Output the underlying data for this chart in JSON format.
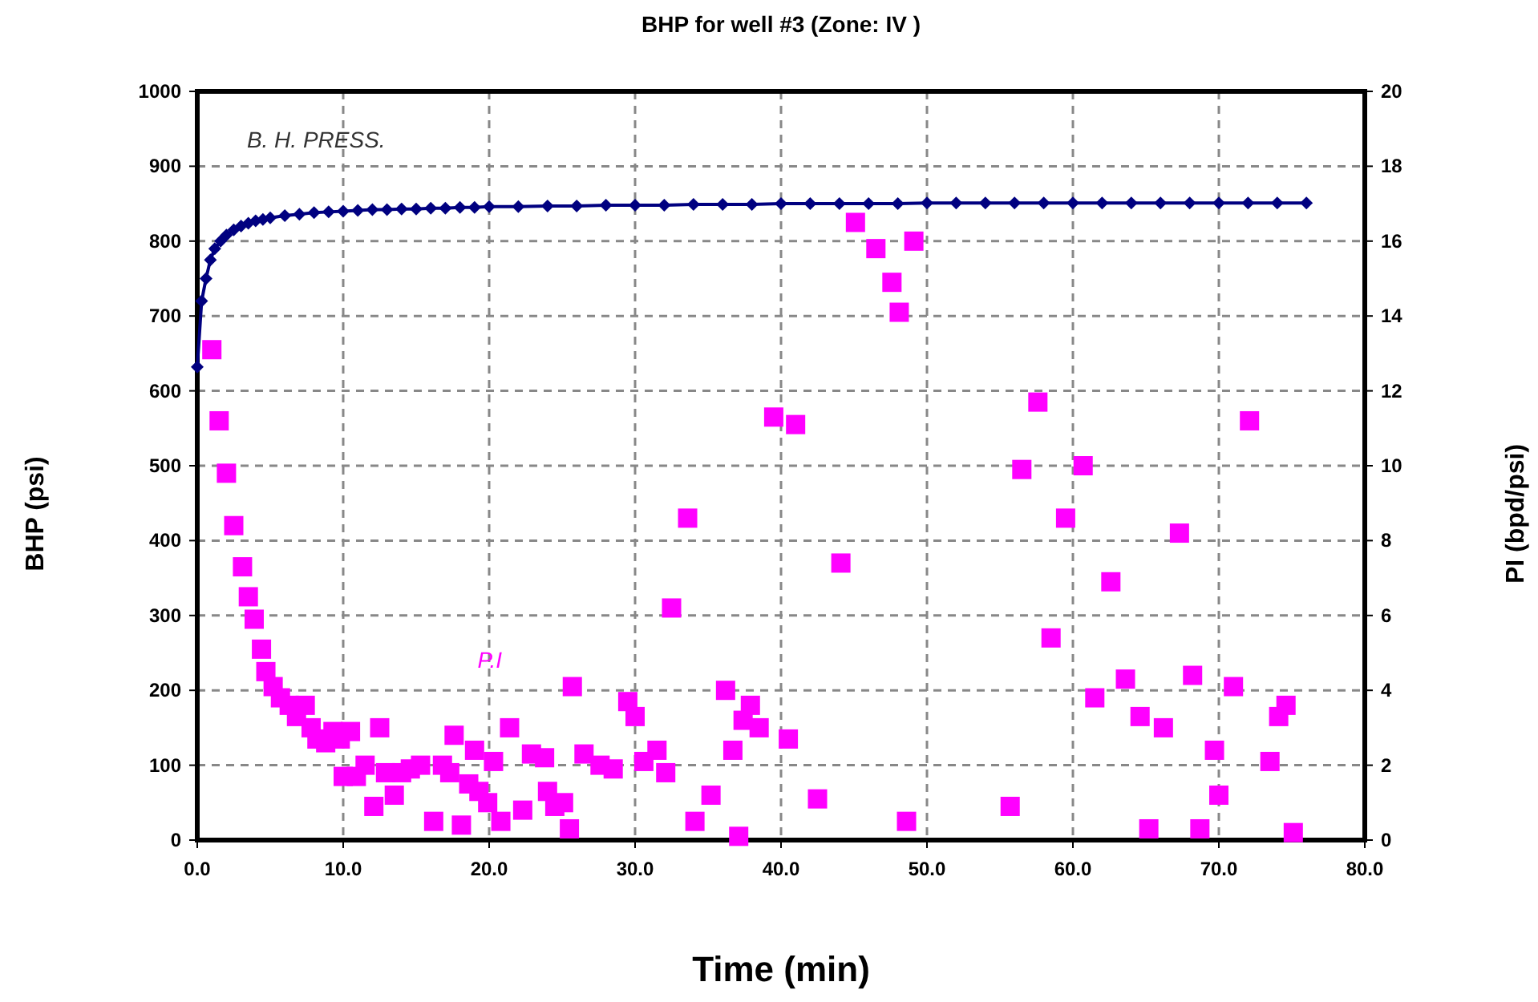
{
  "chart_data": {
    "type": "scatter",
    "title": "BHP for well #3 (Zone: IV )",
    "xlabel": "Time (min)",
    "ylabel": "BHP (psi)",
    "y2label": "PI (bpd/psi)",
    "xlim": [
      0,
      80
    ],
    "xticks": [
      {
        "value": 0,
        "label": "0.0"
      },
      {
        "value": 10,
        "label": "10.0"
      },
      {
        "value": 20,
        "label": "20.0"
      },
      {
        "value": 30,
        "label": "30.0"
      },
      {
        "value": 40,
        "label": "40.0"
      },
      {
        "value": 50,
        "label": "50.0"
      },
      {
        "value": 60,
        "label": "60.0"
      },
      {
        "value": 70,
        "label": "70.0"
      },
      {
        "value": 80,
        "label": "80.0"
      }
    ],
    "ylim": [
      0,
      1000
    ],
    "yticks": [
      0,
      100,
      200,
      300,
      400,
      500,
      600,
      700,
      800,
      900,
      1000
    ],
    "y2lim": [
      0,
      20
    ],
    "y2ticks": [
      0,
      2,
      4,
      6,
      8,
      10,
      12,
      14,
      16,
      18,
      20
    ],
    "grid": true,
    "series": [
      {
        "name": "B. H. PRESS.",
        "type": "line",
        "color": "#000080",
        "marker": "diamond",
        "line_style": "solid",
        "x": [
          0,
          0.3,
          0.6,
          0.9,
          1.2,
          1.6,
          2,
          2.5,
          3,
          3.5,
          4,
          4.5,
          5,
          6,
          7,
          8,
          9,
          10,
          11,
          12,
          13,
          14,
          15,
          16,
          17,
          18,
          19,
          20,
          22,
          24,
          26,
          28,
          30,
          32,
          34,
          36,
          38,
          40,
          42,
          44,
          46,
          48,
          50,
          52,
          54,
          56,
          58,
          60,
          62,
          64,
          66,
          68,
          70,
          72,
          74,
          76
        ],
        "values": [
          632,
          720,
          750,
          775,
          790,
          800,
          808,
          815,
          820,
          824,
          827,
          829,
          831,
          834,
          836,
          838,
          839,
          840,
          841,
          842,
          842,
          843,
          843,
          844,
          844,
          845,
          845,
          846,
          846,
          847,
          847,
          848,
          848,
          848,
          849,
          849,
          849,
          850,
          850,
          850,
          850,
          850,
          851,
          851,
          851,
          851,
          851,
          851,
          851,
          851,
          851,
          851,
          851,
          851,
          851,
          851
        ]
      },
      {
        "name": "P.I",
        "axis": "y2",
        "color": "#ff00ff",
        "marker": "square",
        "x": [
          1.0,
          1.5,
          2.0,
          2.5,
          3.1,
          3.5,
          3.9,
          4.4,
          4.7,
          5.2,
          5.7,
          6.3,
          6.8,
          7.4,
          7.8,
          8.2,
          8.8,
          9.3,
          9.8,
          10.5,
          10.0,
          10.9,
          11.5,
          12.1,
          12.5,
          12.9,
          13.5,
          14.0,
          14.6,
          15.3,
          16.2,
          16.8,
          17.3,
          17.6,
          18.1,
          18.6,
          19.0,
          19.3,
          19.9,
          20.3,
          20.8,
          21.4,
          22.3,
          22.9,
          23.8,
          24.0,
          24.5,
          25.1,
          25.5,
          25.7,
          26.5,
          27.6,
          28.5,
          29.5,
          30.0,
          30.6,
          31.5,
          32.1,
          32.5,
          33.6,
          34.1,
          35.2,
          36.2,
          36.7,
          37.1,
          37.4,
          37.9,
          38.5,
          39.5,
          41.0,
          40.5,
          42.5,
          44.1,
          45.1,
          46.5,
          47.6,
          48.1,
          49.1,
          48.6,
          55.7,
          56.5,
          57.6,
          58.5,
          59.5,
          60.7,
          61.5,
          62.6,
          63.6,
          64.6,
          65.2,
          66.2,
          67.3,
          68.2,
          68.7,
          69.7,
          70.0,
          71.0,
          72.1,
          73.5,
          74.1,
          74.6,
          75.1
        ],
        "values": [
          13.1,
          11.2,
          9.8,
          8.4,
          7.3,
          6.5,
          5.9,
          5.1,
          4.5,
          4.1,
          3.8,
          3.6,
          3.3,
          3.6,
          3.0,
          2.7,
          2.6,
          2.9,
          2.7,
          2.9,
          1.7,
          1.7,
          2.0,
          0.9,
          3.0,
          1.8,
          1.2,
          1.8,
          1.9,
          2.0,
          0.5,
          2.0,
          1.8,
          2.8,
          0.4,
          1.5,
          2.4,
          1.3,
          1.0,
          2.1,
          0.5,
          3.0,
          0.8,
          2.3,
          2.2,
          1.3,
          0.9,
          1.0,
          0.3,
          4.1,
          2.3,
          2.0,
          1.9,
          3.7,
          3.3,
          2.1,
          2.4,
          1.8,
          6.2,
          8.6,
          0.5,
          1.2,
          4.0,
          2.4,
          0.1,
          3.2,
          3.6,
          3.0,
          11.3,
          11.1,
          2.7,
          1.1,
          7.4,
          16.5,
          15.8,
          14.9,
          14.1,
          16.0,
          0.5,
          0.9,
          9.9,
          11.7,
          5.4,
          8.6,
          10.0,
          3.8,
          6.9,
          4.3,
          3.3,
          0.3,
          3.0,
          8.2,
          4.4,
          0.3,
          2.4,
          1.2,
          4.1,
          11.2,
          2.1,
          3.3,
          3.6,
          0.2
        ]
      }
    ]
  }
}
